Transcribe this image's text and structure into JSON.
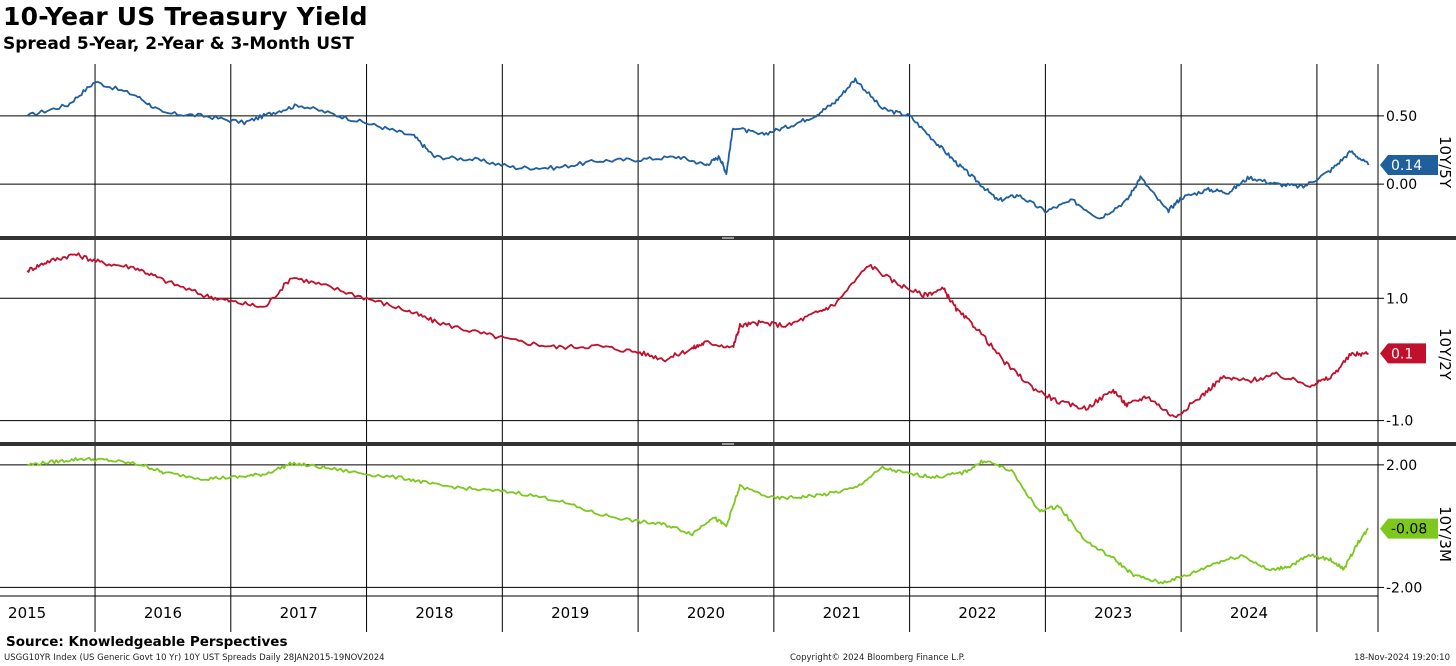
{
  "header": {
    "title": "10-Year US Treasury Yield",
    "subtitle": "Spread 5-Year, 2-Year & 3-Month UST"
  },
  "footer": {
    "source": "Source: Knowledgeable Perspectives",
    "ticker_info": "USGG10YR Index (US Generic Govt 10 Yr) 10Y UST Spreads  Daily 28JAN2015-19NOV2024",
    "copyright": "Copyright© 2024 Bloomberg Finance L.P.",
    "timestamp": "18-Nov-2024 19:20:10"
  },
  "chart_data": [
    {
      "type": "line",
      "panel_label": "10Y/5Y",
      "color": "#1f5f9e",
      "last_value_label": "0.14",
      "yticks": [
        0.0,
        0.5
      ],
      "ytick_labels": [
        "0.00",
        "0.50"
      ],
      "ylim": [
        -0.38,
        0.88
      ],
      "x": [
        2015.0,
        2015.3,
        2015.5,
        2015.8,
        2016.0,
        2016.3,
        2016.6,
        2016.8,
        2017.0,
        2017.3,
        2017.6,
        2017.85,
        2018.0,
        2018.3,
        2018.6,
        2018.9,
        2019.2,
        2019.5,
        2019.8,
        2020.0,
        2020.1,
        2020.15,
        2020.2,
        2020.4,
        2020.6,
        2020.8,
        2020.95,
        2021.1,
        2021.3,
        2021.5,
        2021.7,
        2021.85,
        2022.0,
        2022.15,
        2022.3,
        2022.5,
        2022.7,
        2022.9,
        2023.1,
        2023.2,
        2023.4,
        2023.5,
        2023.7,
        2023.85,
        2024.0,
        2024.2,
        2024.4,
        2024.6,
        2024.75,
        2024.88
      ],
      "y": [
        0.5,
        0.58,
        0.75,
        0.65,
        0.52,
        0.5,
        0.45,
        0.52,
        0.58,
        0.5,
        0.42,
        0.35,
        0.2,
        0.18,
        0.12,
        0.12,
        0.17,
        0.18,
        0.2,
        0.14,
        0.2,
        0.08,
        0.42,
        0.36,
        0.42,
        0.5,
        0.6,
        0.77,
        0.55,
        0.5,
        0.3,
        0.15,
        0.02,
        -0.12,
        -0.08,
        -0.2,
        -0.12,
        -0.25,
        -0.12,
        0.05,
        -0.2,
        -0.1,
        -0.04,
        -0.06,
        0.05,
        0.0,
        -0.02,
        0.1,
        0.24,
        0.14
      ]
    },
    {
      "type": "line",
      "panel_label": "10Y/2Y",
      "color": "#c0102c",
      "last_value_label": "0.1",
      "yticks": [
        -1.0,
        1.0
      ],
      "ytick_labels": [
        "-1.0",
        "1.0"
      ],
      "ylim": [
        -1.35,
        1.92
      ],
      "x": [
        2015.0,
        2015.15,
        2015.35,
        2015.55,
        2015.8,
        2016.0,
        2016.3,
        2016.5,
        2016.75,
        2016.95,
        2017.2,
        2017.5,
        2017.8,
        2018.0,
        2018.3,
        2018.6,
        2018.9,
        2019.2,
        2019.5,
        2019.7,
        2019.9,
        2020.0,
        2020.2,
        2020.25,
        2020.4,
        2020.6,
        2020.8,
        2020.95,
        2021.2,
        2021.4,
        2021.6,
        2021.75,
        2021.85,
        2022.0,
        2022.2,
        2022.4,
        2022.6,
        2022.8,
        2023.0,
        2023.1,
        2023.25,
        2023.45,
        2023.65,
        2023.8,
        2024.0,
        2024.2,
        2024.45,
        2024.6,
        2024.75,
        2024.88
      ],
      "y": [
        1.45,
        1.6,
        1.72,
        1.58,
        1.5,
        1.3,
        1.05,
        0.95,
        0.85,
        1.35,
        1.2,
        1.0,
        0.8,
        0.62,
        0.45,
        0.3,
        0.2,
        0.22,
        0.12,
        0.0,
        0.18,
        0.28,
        0.2,
        0.55,
        0.6,
        0.55,
        0.75,
        0.9,
        1.55,
        1.25,
        1.05,
        1.15,
        0.8,
        0.5,
        -0.05,
        -0.45,
        -0.7,
        -0.8,
        -0.5,
        -0.75,
        -0.6,
        -0.95,
        -0.6,
        -0.3,
        -0.35,
        -0.25,
        -0.42,
        -0.3,
        0.08,
        0.1
      ]
    },
    {
      "type": "line",
      "panel_label": "10Y/3M",
      "color": "#7dc81e",
      "last_value_label": "-0.08",
      "yticks": [
        -2.0,
        2.0
      ],
      "ytick_labels": [
        "-2.00",
        "2.00"
      ],
      "ylim": [
        -2.28,
        2.55
      ],
      "x": [
        2015.0,
        2015.2,
        2015.4,
        2015.6,
        2015.85,
        2016.0,
        2016.3,
        2016.55,
        2016.75,
        2016.95,
        2017.2,
        2017.5,
        2017.8,
        2018.0,
        2018.3,
        2018.6,
        2018.9,
        2019.2,
        2019.5,
        2019.7,
        2019.9,
        2020.05,
        2020.15,
        2020.25,
        2020.5,
        2020.7,
        2020.9,
        2021.1,
        2021.3,
        2021.5,
        2021.7,
        2021.9,
        2022.05,
        2022.25,
        2022.45,
        2022.6,
        2022.8,
        2023.0,
        2023.15,
        2023.35,
        2023.55,
        2023.75,
        2023.95,
        2024.15,
        2024.3,
        2024.45,
        2024.6,
        2024.7,
        2024.8,
        2024.88
      ],
      "y": [
        2.0,
        2.1,
        2.2,
        2.15,
        2.0,
        1.75,
        1.55,
        1.6,
        1.7,
        2.05,
        1.9,
        1.7,
        1.55,
        1.35,
        1.2,
        1.1,
        0.85,
        0.4,
        0.15,
        0.05,
        -0.25,
        0.3,
        0.0,
        1.3,
        0.9,
        0.95,
        1.05,
        1.25,
        1.9,
        1.7,
        1.6,
        1.75,
        2.15,
        1.8,
        0.5,
        0.65,
        -0.5,
        -1.05,
        -1.6,
        -1.85,
        -1.6,
        -1.2,
        -0.95,
        -1.45,
        -1.3,
        -0.95,
        -1.1,
        -1.4,
        -0.55,
        -0.08
      ]
    }
  ],
  "x_axis": {
    "year_labels": [
      "2015",
      "2016",
      "2017",
      "2018",
      "2019",
      "2020",
      "2021",
      "2022",
      "2023",
      "2024"
    ]
  }
}
